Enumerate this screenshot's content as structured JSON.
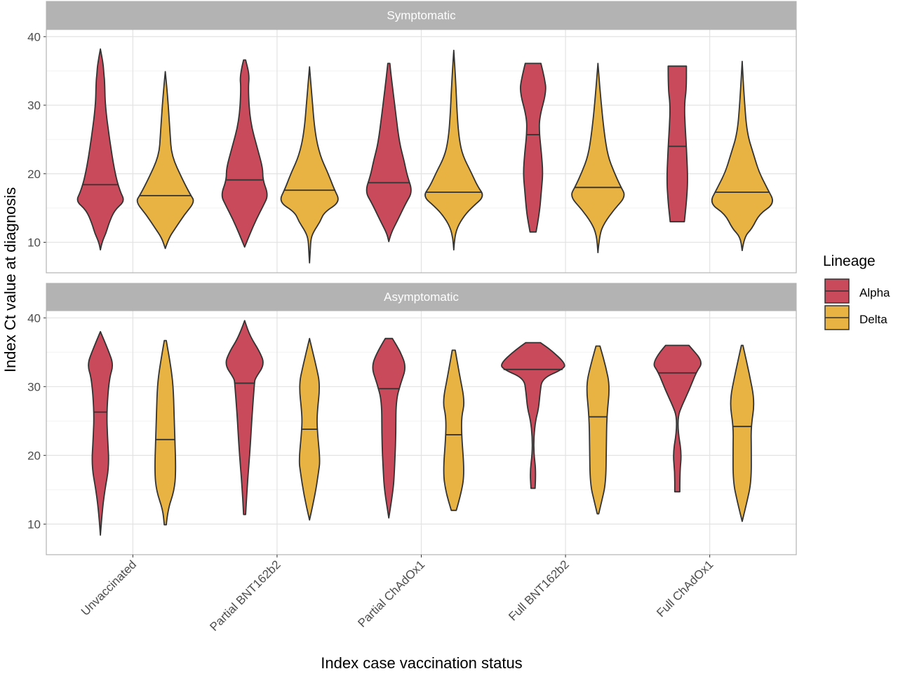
{
  "chart_data": {
    "type": "violin",
    "xlabel": "Index case vaccination status",
    "ylabel": "Index Ct value at diagnosis",
    "categories": [
      "Unvaccinated",
      "Partial BNT162b2",
      "Partial ChAdOx1",
      "Full BNT162b2",
      "Full ChAdOx1"
    ],
    "ylim": [
      5.55,
      41.05
    ],
    "yticks": [
      10,
      20,
      30,
      40
    ],
    "grid": true,
    "legend": {
      "title": "Lineage",
      "placement": "right",
      "entries": [
        {
          "name": "Alpha",
          "color": "#C94A5B"
        },
        {
          "name": "Delta",
          "color": "#E9B343"
        }
      ]
    },
    "density_note": "profiles are [Ct value, relative density] pairs",
    "panels": [
      {
        "title": "Symptomatic",
        "violins": [
          {
            "category": "Unvaccinated",
            "lineage": "Alpha",
            "median": 18.4,
            "profile": [
              [
                8.9,
                0
              ],
              [
                10,
                0.06
              ],
              [
                11.3,
                0.22
              ],
              [
                12.7,
                0.33
              ],
              [
                14.7,
                0.56
              ],
              [
                16,
                0.97
              ],
              [
                17.4,
                0.78
              ],
              [
                20,
                0.58
              ],
              [
                25,
                0.36
              ],
              [
                30,
                0.19
              ],
              [
                33.4,
                0.17
              ],
              [
                34.5,
                0.14
              ],
              [
                36,
                0.11
              ],
              [
                38.2,
                0
              ]
            ]
          },
          {
            "category": "Unvaccinated",
            "lineage": "Delta",
            "median": 16.8,
            "profile": [
              [
                9.1,
                0
              ],
              [
                10.6,
                0.14
              ],
              [
                12,
                0.39
              ],
              [
                14,
                0.75
              ],
              [
                15.9,
                1.17
              ],
              [
                16.9,
                1.0
              ],
              [
                19.1,
                0.69
              ],
              [
                22.6,
                0.25
              ],
              [
                25.9,
                0.19
              ],
              [
                31,
                0.1
              ],
              [
                34.9,
                0
              ]
            ]
          },
          {
            "category": "Partial BNT162b2",
            "lineage": "Alpha",
            "median": 19.1,
            "profile": [
              [
                9.3,
                0
              ],
              [
                11.3,
                0.22
              ],
              [
                13.4,
                0.47
              ],
              [
                15.4,
                0.75
              ],
              [
                16.9,
                0.94
              ],
              [
                19.1,
                0.72
              ],
              [
                20.8,
                0.72
              ],
              [
                23.5,
                0.52
              ],
              [
                27.6,
                0.22
              ],
              [
                32.4,
                0.14
              ],
              [
                34.4,
                0.19
              ],
              [
                36.6,
                0.04
              ]
            ]
          },
          {
            "category": "Partial BNT162b2",
            "lineage": "Delta",
            "median": 17.6,
            "profile": [
              [
                7,
                0
              ],
              [
                9,
                0.03
              ],
              [
                10.6,
                0.06
              ],
              [
                11.6,
                0.17
              ],
              [
                13,
                0.42
              ],
              [
                14.4,
                0.58
              ],
              [
                15.9,
                1.22
              ],
              [
                17.8,
                0.97
              ],
              [
                20.2,
                0.72
              ],
              [
                22.6,
                0.42
              ],
              [
                25.9,
                0.22
              ],
              [
                31,
                0.1
              ],
              [
                35.6,
                0
              ]
            ]
          },
          {
            "category": "Partial ChAdOx1",
            "lineage": "Alpha",
            "median": 18.7,
            "profile": [
              [
                10.1,
                0
              ],
              [
                11.3,
                0.08
              ],
              [
                13.3,
                0.36
              ],
              [
                15.7,
                0.67
              ],
              [
                17.4,
                0.94
              ],
              [
                19.8,
                0.72
              ],
              [
                21.8,
                0.61
              ],
              [
                24.5,
                0.42
              ],
              [
                28.6,
                0.28
              ],
              [
                33.7,
                0.11
              ],
              [
                36.1,
                0.04
              ]
            ]
          },
          {
            "category": "Partial ChAdOx1",
            "lineage": "Delta",
            "median": 17.3,
            "profile": [
              [
                8.9,
                0
              ],
              [
                10.5,
                0.03
              ],
              [
                12.2,
                0.14
              ],
              [
                13.9,
                0.42
              ],
              [
                15.2,
                0.75
              ],
              [
                16.7,
                1.22
              ],
              [
                18.2,
                0.94
              ],
              [
                20.2,
                0.69
              ],
              [
                22.6,
                0.36
              ],
              [
                24.9,
                0.22
              ],
              [
                28.3,
                0.14
              ],
              [
                33.4,
                0.08
              ],
              [
                38,
                0
              ]
            ]
          },
          {
            "category": "Full BNT162b2",
            "lineage": "Alpha",
            "median": 25.7,
            "profile": [
              [
                11.5,
                0.12
              ],
              [
                14.1,
                0.25
              ],
              [
                17.6,
                0.33
              ],
              [
                20.1,
                0.39
              ],
              [
                23.1,
                0.33
              ],
              [
                25.8,
                0.25
              ],
              [
                28.2,
                0.25
              ],
              [
                32,
                0.53
              ],
              [
                34,
                0.45
              ],
              [
                36.1,
                0.31
              ]
            ]
          },
          {
            "category": "Full BNT162b2",
            "lineage": "Delta",
            "median": 18.0,
            "profile": [
              [
                8.5,
                0
              ],
              [
                11.1,
                0.06
              ],
              [
                12.8,
                0.25
              ],
              [
                14.8,
                0.64
              ],
              [
                16.7,
                1.11
              ],
              [
                18.2,
                0.89
              ],
              [
                20.2,
                0.64
              ],
              [
                22.6,
                0.39
              ],
              [
                25.9,
                0.25
              ],
              [
                30.9,
                0.11
              ],
              [
                36.1,
                0
              ]
            ]
          },
          {
            "category": "Full ChAdOx1",
            "lineage": "Alpha",
            "median": 24.0,
            "profile": [
              [
                13,
                0.28
              ],
              [
                15.7,
                0.36
              ],
              [
                19.1,
                0.42
              ],
              [
                23.9,
                0.36
              ],
              [
                26.9,
                0.31
              ],
              [
                30,
                0.28
              ],
              [
                32.4,
                0.36
              ],
              [
                35.7,
                0.36
              ]
            ]
          },
          {
            "category": "Full ChAdOx1",
            "lineage": "Delta",
            "median": 17.3,
            "profile": [
              [
                8.8,
                0
              ],
              [
                10.8,
                0.08
              ],
              [
                12,
                0.39
              ],
              [
                14.1,
                0.67
              ],
              [
                15.7,
                1.3
              ],
              [
                17.8,
                1.0
              ],
              [
                20.2,
                0.67
              ],
              [
                22.6,
                0.47
              ],
              [
                25.9,
                0.19
              ],
              [
                31,
                0.08
              ],
              [
                36.4,
                0
              ]
            ]
          }
        ]
      },
      {
        "title": "Asymptomatic",
        "violins": [
          {
            "category": "Unvaccinated",
            "lineage": "Alpha",
            "median": 26.3,
            "profile": [
              [
                8.4,
                0
              ],
              [
                11.4,
                0.06
              ],
              [
                14.8,
                0.17
              ],
              [
                18.6,
                0.35
              ],
              [
                22.7,
                0.28
              ],
              [
                26.4,
                0.25
              ],
              [
                31.2,
                0.35
              ],
              [
                33.2,
                0.52
              ],
              [
                35.3,
                0.31
              ],
              [
                38,
                0
              ]
            ]
          },
          {
            "category": "Unvaccinated",
            "lineage": "Delta",
            "median": 22.3,
            "profile": [
              [
                9.9,
                0.04
              ],
              [
                12.1,
                0.1
              ],
              [
                14.8,
                0.35
              ],
              [
                17.6,
                0.42
              ],
              [
                22.4,
                0.38
              ],
              [
                26.1,
                0.35
              ],
              [
                30.2,
                0.31
              ],
              [
                32.9,
                0.22
              ],
              [
                36.7,
                0.04
              ]
            ]
          },
          {
            "category": "Partial BNT162b2",
            "lineage": "Alpha",
            "median": 30.5,
            "profile": [
              [
                11.4,
                0.04
              ],
              [
                15.9,
                0.11
              ],
              [
                21,
                0.22
              ],
              [
                26.1,
                0.3
              ],
              [
                30.5,
                0.39
              ],
              [
                31.2,
                0.42
              ],
              [
                33.2,
                0.79
              ],
              [
                35,
                0.61
              ],
              [
                37.3,
                0.22
              ],
              [
                39.6,
                0
              ]
            ]
          },
          {
            "category": "Partial BNT162b2",
            "lineage": "Delta",
            "median": 23.8,
            "profile": [
              [
                10.6,
                0
              ],
              [
                14.2,
                0.22
              ],
              [
                17.6,
                0.36
              ],
              [
                19.3,
                0.42
              ],
              [
                23.9,
                0.3
              ],
              [
                26.1,
                0.3
              ],
              [
                30.2,
                0.42
              ],
              [
                32.9,
                0.27
              ],
              [
                37,
                0
              ]
            ]
          },
          {
            "category": "Partial ChAdOx1",
            "lineage": "Alpha",
            "median": 29.7,
            "profile": [
              [
                10.9,
                0
              ],
              [
                14.8,
                0.17
              ],
              [
                17.6,
                0.22
              ],
              [
                22.7,
                0.28
              ],
              [
                27.9,
                0.28
              ],
              [
                30.5,
                0.47
              ],
              [
                32.8,
                0.69
              ],
              [
                35,
                0.47
              ],
              [
                37,
                0.14
              ]
            ]
          },
          {
            "category": "Partial ChAdOx1",
            "lineage": "Delta",
            "median": 23.0,
            "profile": [
              [
                12,
                0.1
              ],
              [
                14.8,
                0.32
              ],
              [
                17.6,
                0.42
              ],
              [
                23,
                0.31
              ],
              [
                25.7,
                0.31
              ],
              [
                27.8,
                0.44
              ],
              [
                31.9,
                0.22
              ],
              [
                35.3,
                0.06
              ]
            ]
          },
          {
            "category": "Full BNT162b2",
            "lineage": "Alpha",
            "median": 32.5,
            "profile": [
              [
                15.2,
                0.08
              ],
              [
                17.6,
                0.12
              ],
              [
                20.3,
                0.03
              ],
              [
                22.7,
                0.03
              ],
              [
                25.1,
                0.1
              ],
              [
                26.8,
                0.22
              ],
              [
                29.2,
                0.28
              ],
              [
                31.2,
                0.36
              ],
              [
                32.5,
                1.17
              ],
              [
                33.3,
                1.3
              ],
              [
                35.3,
                0.72
              ],
              [
                36.4,
                0.29
              ]
            ]
          },
          {
            "category": "Full BNT162b2",
            "lineage": "Delta",
            "median": 25.6,
            "profile": [
              [
                11.5,
                0.03
              ],
              [
                13.2,
                0.14
              ],
              [
                15.9,
                0.31
              ],
              [
                21.1,
                0.33
              ],
              [
                25.7,
                0.35
              ],
              [
                30,
                0.47
              ],
              [
                32.9,
                0.31
              ],
              [
                35.9,
                0.08
              ]
            ]
          },
          {
            "category": "Full ChAdOx1",
            "lineage": "Alpha",
            "median": 32.0,
            "profile": [
              [
                14.7,
                0.1
              ],
              [
                17.6,
                0.1
              ],
              [
                20.3,
                0.17
              ],
              [
                23.4,
                0.03
              ],
              [
                25.7,
                0.03
              ],
              [
                27.1,
                0.17
              ],
              [
                29.5,
                0.47
              ],
              [
                32.1,
                0.75
              ],
              [
                33.6,
                1.03
              ],
              [
                36,
                0.46
              ]
            ]
          },
          {
            "category": "Full ChAdOx1",
            "lineage": "Delta",
            "median": 24.2,
            "profile": [
              [
                10.4,
                0
              ],
              [
                13.2,
                0.19
              ],
              [
                16.2,
                0.36
              ],
              [
                21,
                0.36
              ],
              [
                24.2,
                0.35
              ],
              [
                27.8,
                0.5
              ],
              [
                31.9,
                0.28
              ],
              [
                36,
                0.03
              ]
            ]
          }
        ]
      }
    ]
  }
}
